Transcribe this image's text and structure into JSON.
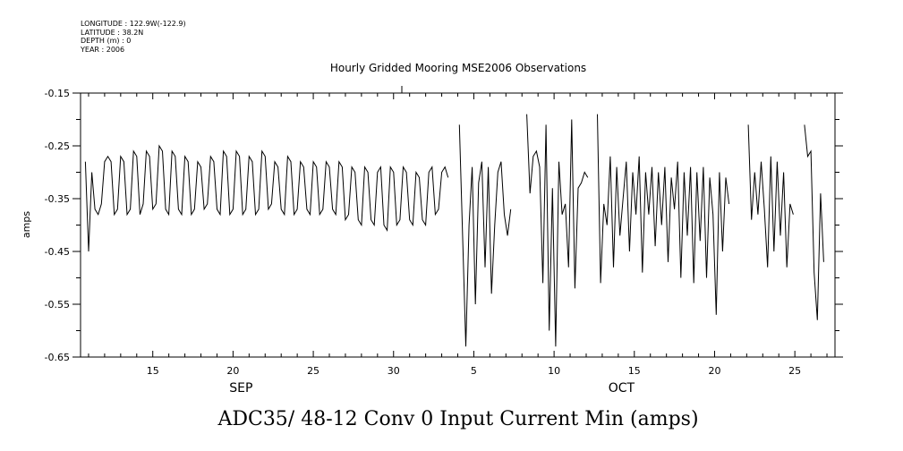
{
  "header": {
    "longitude": "LONGITUDE : 122.9W(-122.9)",
    "latitude": "LATITUDE : 38.2N",
    "depth": "DEPTH (m) : 0",
    "year": "YEAR : 2006"
  },
  "chart_data": {
    "type": "line",
    "title": "Hourly Gridded Mooring MSE2006 Observations",
    "bottom_title": "ADC35/ 48-12 Conv 0 Input Current Min (amps)",
    "ylabel": "amps",
    "ylim": [
      -0.65,
      -0.15
    ],
    "xlim": [
      10.5,
      57.5
    ],
    "x_units": "day (Sep 1 = 1; Oct 1 = 31)",
    "y_ticks": [
      {
        "value": -0.15,
        "label": "-0.15"
      },
      {
        "value": -0.25,
        "label": "-0.25"
      },
      {
        "value": -0.35,
        "label": "-0.35"
      },
      {
        "value": -0.45,
        "label": "-0.45"
      },
      {
        "value": -0.55,
        "label": "-0.55"
      },
      {
        "value": -0.65,
        "label": "-0.65"
      }
    ],
    "x_tick_labels": [
      {
        "x": 15,
        "label": "15"
      },
      {
        "x": 20,
        "label": "20"
      },
      {
        "x": 25,
        "label": "25"
      },
      {
        "x": 30,
        "label": "30"
      },
      {
        "x": 35,
        "label": "5"
      },
      {
        "x": 40,
        "label": "10"
      },
      {
        "x": 45,
        "label": "15"
      },
      {
        "x": 50,
        "label": "20"
      },
      {
        "x": 55,
        "label": "25"
      }
    ],
    "month_labels": [
      {
        "x": 20.5,
        "label": "SEP"
      },
      {
        "x": 44.2,
        "label": "OCT"
      }
    ],
    "grid": false,
    "series": [
      {
        "segments": [
          [
            [
              10.8,
              -0.28
            ],
            [
              11.0,
              -0.45
            ],
            [
              11.2,
              -0.3
            ],
            [
              11.4,
              -0.37
            ],
            [
              11.6,
              -0.38
            ],
            [
              11.8,
              -0.36
            ],
            [
              12.0,
              -0.28
            ],
            [
              12.2,
              -0.27
            ],
            [
              12.4,
              -0.28
            ],
            [
              12.6,
              -0.38
            ],
            [
              12.8,
              -0.37
            ],
            [
              13.0,
              -0.27
            ],
            [
              13.2,
              -0.28
            ],
            [
              13.4,
              -0.38
            ],
            [
              13.6,
              -0.37
            ],
            [
              13.8,
              -0.26
            ],
            [
              14.0,
              -0.27
            ],
            [
              14.2,
              -0.38
            ],
            [
              14.4,
              -0.36
            ],
            [
              14.6,
              -0.26
            ],
            [
              14.8,
              -0.27
            ],
            [
              15.0,
              -0.37
            ],
            [
              15.2,
              -0.36
            ],
            [
              15.4,
              -0.25
            ],
            [
              15.6,
              -0.26
            ],
            [
              15.8,
              -0.37
            ],
            [
              16.0,
              -0.38
            ],
            [
              16.2,
              -0.26
            ],
            [
              16.4,
              -0.27
            ],
            [
              16.6,
              -0.37
            ],
            [
              16.8,
              -0.38
            ],
            [
              17.0,
              -0.27
            ],
            [
              17.2,
              -0.28
            ],
            [
              17.4,
              -0.38
            ],
            [
              17.6,
              -0.37
            ],
            [
              17.8,
              -0.28
            ],
            [
              18.0,
              -0.29
            ],
            [
              18.2,
              -0.37
            ],
            [
              18.4,
              -0.36
            ],
            [
              18.6,
              -0.27
            ],
            [
              18.8,
              -0.28
            ],
            [
              19.0,
              -0.37
            ],
            [
              19.2,
              -0.38
            ],
            [
              19.4,
              -0.26
            ],
            [
              19.6,
              -0.27
            ],
            [
              19.8,
              -0.38
            ],
            [
              20.0,
              -0.37
            ],
            [
              20.2,
              -0.26
            ],
            [
              20.4,
              -0.27
            ],
            [
              20.6,
              -0.38
            ],
            [
              20.8,
              -0.37
            ],
            [
              21.0,
              -0.27
            ],
            [
              21.2,
              -0.28
            ],
            [
              21.4,
              -0.38
            ],
            [
              21.6,
              -0.37
            ],
            [
              21.8,
              -0.26
            ],
            [
              22.0,
              -0.27
            ],
            [
              22.2,
              -0.37
            ],
            [
              22.4,
              -0.36
            ],
            [
              22.6,
              -0.28
            ],
            [
              22.8,
              -0.29
            ],
            [
              23.0,
              -0.37
            ],
            [
              23.2,
              -0.38
            ],
            [
              23.4,
              -0.27
            ],
            [
              23.6,
              -0.28
            ],
            [
              23.8,
              -0.38
            ],
            [
              24.0,
              -0.37
            ],
            [
              24.2,
              -0.28
            ],
            [
              24.4,
              -0.29
            ],
            [
              24.6,
              -0.37
            ],
            [
              24.8,
              -0.38
            ],
            [
              25.0,
              -0.28
            ],
            [
              25.2,
              -0.29
            ],
            [
              25.4,
              -0.38
            ],
            [
              25.6,
              -0.37
            ],
            [
              25.8,
              -0.28
            ],
            [
              26.0,
              -0.29
            ],
            [
              26.2,
              -0.37
            ],
            [
              26.4,
              -0.38
            ],
            [
              26.6,
              -0.28
            ],
            [
              26.8,
              -0.29
            ],
            [
              27.0,
              -0.39
            ],
            [
              27.2,
              -0.38
            ],
            [
              27.4,
              -0.29
            ],
            [
              27.6,
              -0.3
            ],
            [
              27.8,
              -0.39
            ],
            [
              28.0,
              -0.4
            ],
            [
              28.2,
              -0.29
            ],
            [
              28.4,
              -0.3
            ],
            [
              28.6,
              -0.39
            ],
            [
              28.8,
              -0.4
            ],
            [
              29.0,
              -0.3
            ],
            [
              29.2,
              -0.29
            ],
            [
              29.4,
              -0.4
            ],
            [
              29.6,
              -0.41
            ],
            [
              29.8,
              -0.29
            ],
            [
              30.0,
              -0.3
            ],
            [
              30.2,
              -0.4
            ],
            [
              30.4,
              -0.39
            ],
            [
              30.6,
              -0.29
            ],
            [
              30.8,
              -0.3
            ],
            [
              31.0,
              -0.39
            ],
            [
              31.2,
              -0.4
            ],
            [
              31.4,
              -0.3
            ],
            [
              31.6,
              -0.31
            ],
            [
              31.8,
              -0.39
            ],
            [
              32.0,
              -0.4
            ],
            [
              32.2,
              -0.3
            ],
            [
              32.4,
              -0.29
            ],
            [
              32.6,
              -0.38
            ],
            [
              32.8,
              -0.37
            ],
            [
              33.0,
              -0.3
            ],
            [
              33.2,
              -0.29
            ],
            [
              33.4,
              -0.31
            ]
          ],
          [
            [
              34.1,
              -0.21
            ],
            [
              34.3,
              -0.42
            ],
            [
              34.5,
              -0.63
            ],
            [
              34.7,
              -0.4
            ],
            [
              34.9,
              -0.29
            ],
            [
              35.1,
              -0.55
            ],
            [
              35.3,
              -0.32
            ],
            [
              35.5,
              -0.28
            ],
            [
              35.7,
              -0.48
            ],
            [
              35.9,
              -0.29
            ],
            [
              36.1,
              -0.53
            ],
            [
              36.3,
              -0.4
            ],
            [
              36.5,
              -0.3
            ],
            [
              36.7,
              -0.28
            ],
            [
              36.9,
              -0.38
            ],
            [
              37.1,
              -0.42
            ],
            [
              37.3,
              -0.37
            ]
          ],
          [
            [
              38.3,
              -0.19
            ],
            [
              38.5,
              -0.34
            ],
            [
              38.7,
              -0.27
            ],
            [
              38.9,
              -0.26
            ],
            [
              39.1,
              -0.29
            ],
            [
              39.3,
              -0.51
            ],
            [
              39.5,
              -0.21
            ],
            [
              39.7,
              -0.6
            ],
            [
              39.9,
              -0.33
            ],
            [
              40.1,
              -0.63
            ],
            [
              40.3,
              -0.28
            ],
            [
              40.5,
              -0.38
            ],
            [
              40.7,
              -0.36
            ],
            [
              40.9,
              -0.48
            ],
            [
              41.1,
              -0.2
            ],
            [
              41.3,
              -0.52
            ],
            [
              41.5,
              -0.33
            ],
            [
              41.7,
              -0.32
            ],
            [
              41.9,
              -0.3
            ],
            [
              42.1,
              -0.31
            ]
          ],
          [
            [
              42.7,
              -0.19
            ],
            [
              42.9,
              -0.51
            ],
            [
              43.1,
              -0.36
            ],
            [
              43.3,
              -0.4
            ],
            [
              43.5,
              -0.27
            ],
            [
              43.7,
              -0.48
            ],
            [
              43.9,
              -0.29
            ],
            [
              44.1,
              -0.42
            ],
            [
              44.3,
              -0.35
            ],
            [
              44.5,
              -0.28
            ],
            [
              44.7,
              -0.45
            ],
            [
              44.9,
              -0.3
            ],
            [
              45.1,
              -0.38
            ],
            [
              45.3,
              -0.27
            ],
            [
              45.5,
              -0.49
            ],
            [
              45.7,
              -0.3
            ],
            [
              45.9,
              -0.38
            ],
            [
              46.1,
              -0.29
            ],
            [
              46.3,
              -0.44
            ],
            [
              46.5,
              -0.3
            ],
            [
              46.7,
              -0.4
            ],
            [
              46.9,
              -0.29
            ],
            [
              47.1,
              -0.47
            ],
            [
              47.3,
              -0.31
            ],
            [
              47.5,
              -0.37
            ],
            [
              47.7,
              -0.28
            ],
            [
              47.9,
              -0.5
            ],
            [
              48.1,
              -0.3
            ],
            [
              48.3,
              -0.42
            ],
            [
              48.5,
              -0.29
            ],
            [
              48.7,
              -0.51
            ],
            [
              48.9,
              -0.3
            ],
            [
              49.1,
              -0.43
            ],
            [
              49.3,
              -0.29
            ],
            [
              49.5,
              -0.5
            ],
            [
              49.7,
              -0.31
            ],
            [
              49.9,
              -0.38
            ],
            [
              50.1,
              -0.57
            ],
            [
              50.3,
              -0.3
            ],
            [
              50.5,
              -0.45
            ],
            [
              50.7,
              -0.31
            ],
            [
              50.9,
              -0.36
            ]
          ],
          [
            [
              52.1,
              -0.21
            ],
            [
              52.3,
              -0.39
            ],
            [
              52.5,
              -0.3
            ],
            [
              52.7,
              -0.38
            ],
            [
              52.9,
              -0.28
            ],
            [
              53.1,
              -0.37
            ],
            [
              53.3,
              -0.48
            ],
            [
              53.5,
              -0.27
            ],
            [
              53.7,
              -0.45
            ],
            [
              53.9,
              -0.28
            ],
            [
              54.1,
              -0.42
            ],
            [
              54.3,
              -0.3
            ],
            [
              54.5,
              -0.48
            ],
            [
              54.7,
              -0.36
            ],
            [
              54.9,
              -0.38
            ]
          ],
          [
            [
              55.6,
              -0.21
            ],
            [
              55.8,
              -0.27
            ],
            [
              56.0,
              -0.26
            ],
            [
              56.2,
              -0.49
            ],
            [
              56.4,
              -0.58
            ],
            [
              56.6,
              -0.34
            ],
            [
              56.8,
              -0.47
            ]
          ]
        ]
      }
    ]
  }
}
